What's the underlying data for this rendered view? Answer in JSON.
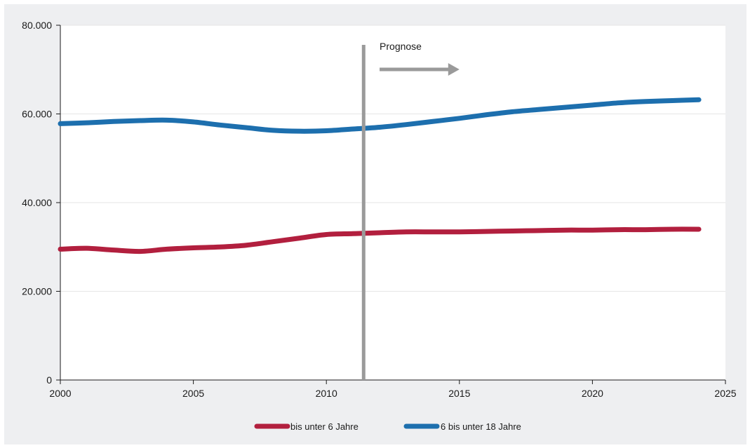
{
  "chart_data": {
    "type": "line",
    "title": "",
    "xlabel": "",
    "ylabel": "",
    "xlim": [
      2000,
      2025
    ],
    "ylim": [
      0,
      80000
    ],
    "xticks": [
      2000,
      2005,
      2010,
      2015,
      2020,
      2025
    ],
    "xtick_labels": [
      "2000",
      "2005",
      "2010",
      "2015",
      "2020",
      "2025"
    ],
    "yticks": [
      0,
      20000,
      40000,
      60000,
      80000
    ],
    "ytick_labels": [
      "0",
      "20.000",
      "40.000",
      "60.000",
      "80.000"
    ],
    "grid": "horizontal",
    "legend_position": "bottom-center",
    "annotation": {
      "label": "Prognose",
      "x": 2011.4,
      "arrow_from": 2012,
      "arrow_to": 2015,
      "color": "#9a9a9a"
    },
    "series": [
      {
        "name": "bis unter 6 Jahre",
        "color": "#b21f3e",
        "x": [
          2000,
          2001,
          2002,
          2003,
          2004,
          2005,
          2006,
          2007,
          2008,
          2009,
          2010,
          2011,
          2012,
          2013,
          2014,
          2015,
          2016,
          2017,
          2018,
          2019,
          2020,
          2021,
          2022,
          2023,
          2024
        ],
        "values": [
          29500,
          29700,
          29300,
          29000,
          29500,
          29800,
          30000,
          30400,
          31200,
          32000,
          32800,
          33000,
          33200,
          33400,
          33400,
          33400,
          33500,
          33600,
          33700,
          33800,
          33800,
          33900,
          33900,
          34000,
          34000
        ]
      },
      {
        "name": "6 bis unter 18 Jahre",
        "color": "#1d6fae",
        "x": [
          2000,
          2001,
          2002,
          2003,
          2004,
          2005,
          2006,
          2007,
          2008,
          2009,
          2010,
          2011,
          2012,
          2013,
          2014,
          2015,
          2016,
          2017,
          2018,
          2019,
          2020,
          2021,
          2022,
          2023,
          2024
        ],
        "values": [
          57800,
          58000,
          58300,
          58500,
          58600,
          58200,
          57500,
          56900,
          56300,
          56100,
          56200,
          56600,
          57000,
          57600,
          58300,
          59000,
          59800,
          60500,
          61000,
          61500,
          62000,
          62500,
          62800,
          63000,
          63200
        ]
      }
    ]
  }
}
